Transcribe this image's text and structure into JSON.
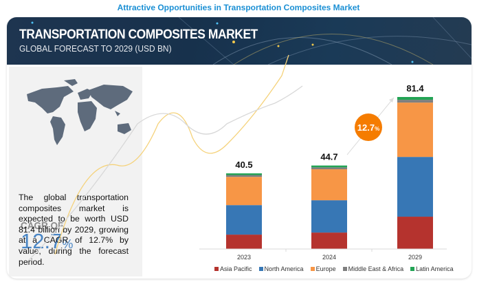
{
  "page_title": "Attractive Opportunities in Transportation Composites Market",
  "banner": {
    "title": "TRANSPORTATION COMPOSITES MARKET",
    "subtitle": "GLOBAL FORECAST TO 2029 (USD BN)"
  },
  "left_panel": {
    "cagr_label": "CAGR OF",
    "cagr_value": "12.7",
    "cagr_unit": "%",
    "description": "The global transportation composites market is expected to be worth USD 81.4 billion by 2029, growing at a CAGR of 12.7% by value, during the forecast period."
  },
  "chart_data": {
    "type": "bar",
    "stacked": true,
    "title": "Transportation Composites Market, Global Forecast to 2029 (USD BN)",
    "xlabel": "",
    "ylabel": "",
    "categories": [
      "2023",
      "2024",
      "2029"
    ],
    "totals": [
      "40.5",
      "44.7",
      "81.4"
    ],
    "series": [
      {
        "name": "Asia Pacific",
        "color": "#b5332e",
        "values": [
          7.7,
          8.8,
          17.3
        ]
      },
      {
        "name": "North America",
        "color": "#3777b5",
        "values": [
          15.8,
          17.3,
          32.0
        ]
      },
      {
        "name": "Europe",
        "color": "#f79646",
        "values": [
          15.1,
          16.6,
          29.1
        ]
      },
      {
        "name": "Middle East & Africa",
        "color": "#7f7f7f",
        "values": [
          1.0,
          1.0,
          1.5
        ]
      },
      {
        "name": "Latin America",
        "color": "#23a455",
        "values": [
          0.9,
          1.0,
          1.5
        ]
      }
    ],
    "ylim": [
      0,
      81.4
    ],
    "grid": false,
    "legend_position": "bottom",
    "annotation": {
      "label": "12.7",
      "unit": "%",
      "color": "#f57c00"
    }
  }
}
